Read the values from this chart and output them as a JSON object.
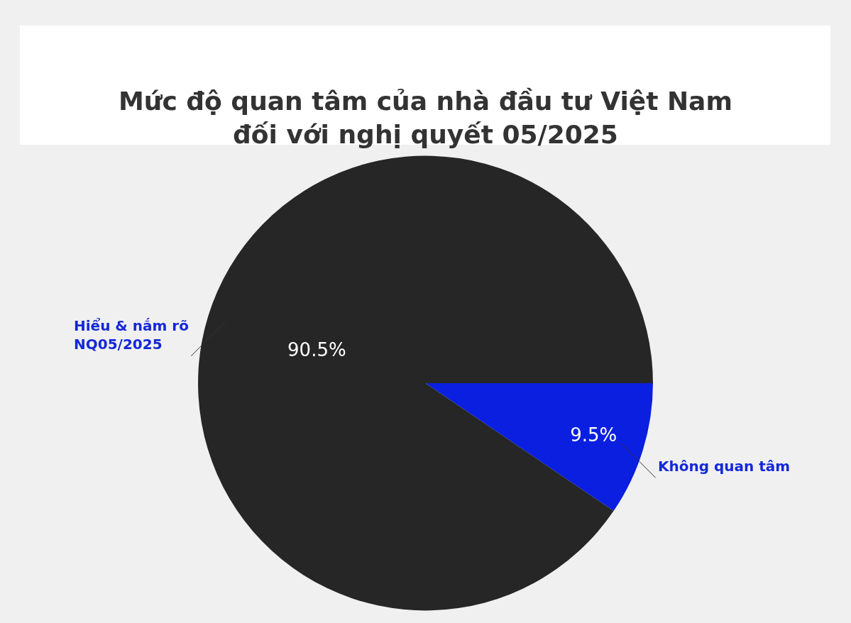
{
  "chart_data": {
    "type": "pie",
    "title": "Mức độ quan tâm của nhà đầu tư Việt Nam\nđối với nghị quyết 05/2025",
    "categories": [
      "Không quan tâm",
      "Hiểu & nắm rõ\nNQ05/2025"
    ],
    "values": [
      9.5,
      90.5
    ],
    "value_labels": [
      "9.5%",
      "90.5%"
    ],
    "colors": [
      "#0a1fe0",
      "#262626"
    ],
    "legend": false
  }
}
